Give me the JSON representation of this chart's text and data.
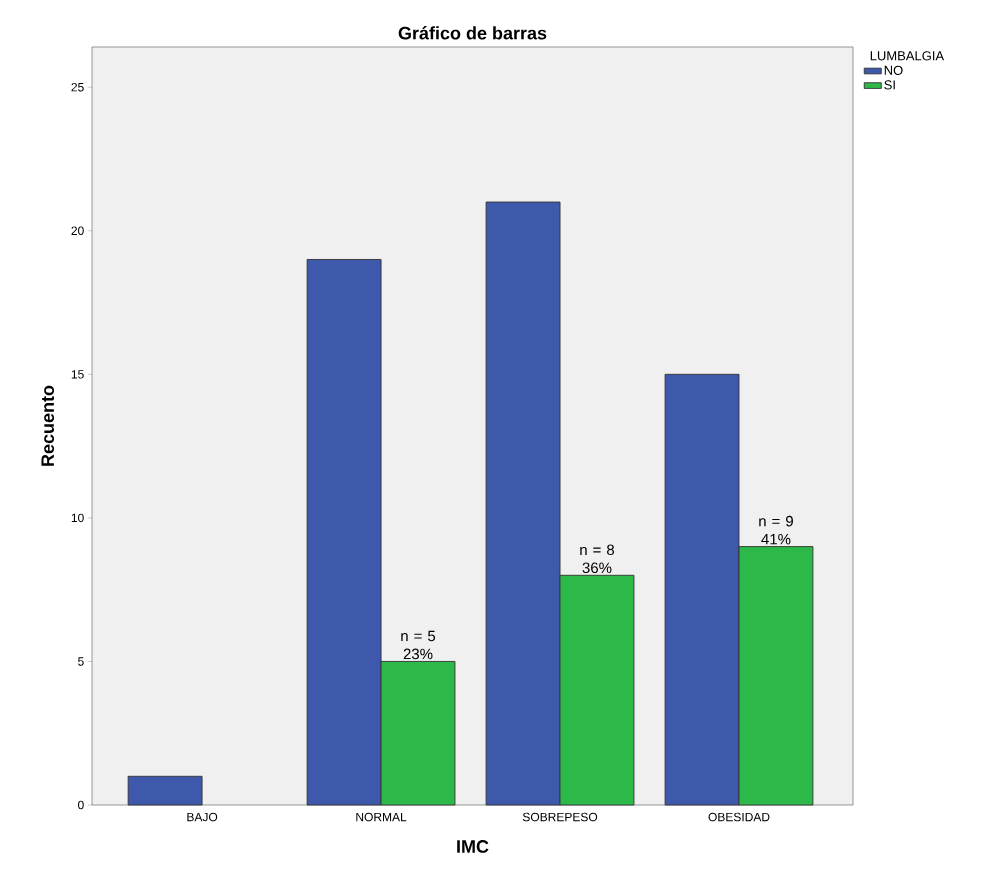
{
  "chart_data": {
    "type": "bar",
    "title": "Gráfico de barras",
    "xlabel": "IMC",
    "ylabel": "Recuento",
    "legend_title": "LUMBALGIA",
    "categories": [
      "BAJO",
      "NORMAL",
      "SOBREPESO",
      "OBESIDAD"
    ],
    "series": [
      {
        "name": "NO",
        "color": "#3e58ac",
        "values": [
          1,
          19,
          21,
          15
        ]
      },
      {
        "name": "SI",
        "color": "#2db84a",
        "values": [
          null,
          5,
          8,
          9
        ],
        "value_labels": [
          null,
          "n = 5 23%",
          "n = 8 36%",
          "n = 9 41%"
        ]
      }
    ],
    "ylim": [
      0,
      26.4
    ],
    "yticks": [
      0,
      5,
      10,
      15,
      20,
      25
    ],
    "grid": false,
    "legend": "top right"
  }
}
